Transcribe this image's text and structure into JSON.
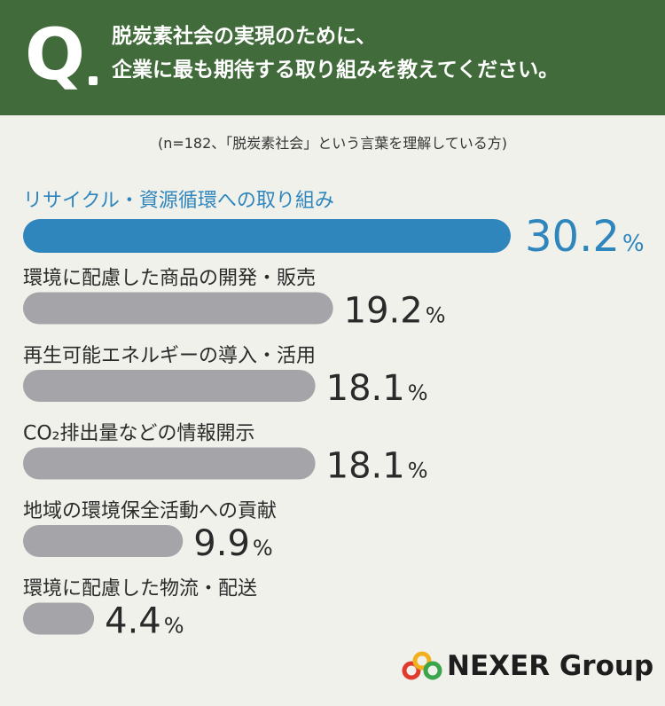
{
  "question": {
    "marker": "Q",
    "line1": "脱炭素社会の実現のために、",
    "line2": "企業に最も期待する取り組みを教えてください。"
  },
  "note": "(n=182、「脱炭素社会」という言葉を理解している方)",
  "chart_data": {
    "type": "bar",
    "orientation": "horizontal",
    "unit": "%",
    "xlim": [
      0,
      30.2
    ],
    "highlight_color": "#2f86bd",
    "bar_color": "#a5a5a9",
    "categories": [
      "リサイクル・資源循環への取り組み",
      "環境に配慮した商品の開発・販売",
      "再生可能エネルギーの導入・活用",
      "CO₂排出量などの情報開示",
      "地域の環境保全活動への貢献",
      "環境に配慮した物流・配送"
    ],
    "values": [
      30.2,
      19.2,
      18.1,
      18.1,
      9.9,
      4.4
    ],
    "value_labels": [
      "30.2",
      "19.2",
      "18.1",
      "18.1",
      "9.9",
      "4.4"
    ],
    "highlight_index": 0
  },
  "logo": {
    "text": "NEXER Group",
    "ring_colors": [
      "#e03a2f",
      "#f2b01e",
      "#3aa54b"
    ]
  }
}
